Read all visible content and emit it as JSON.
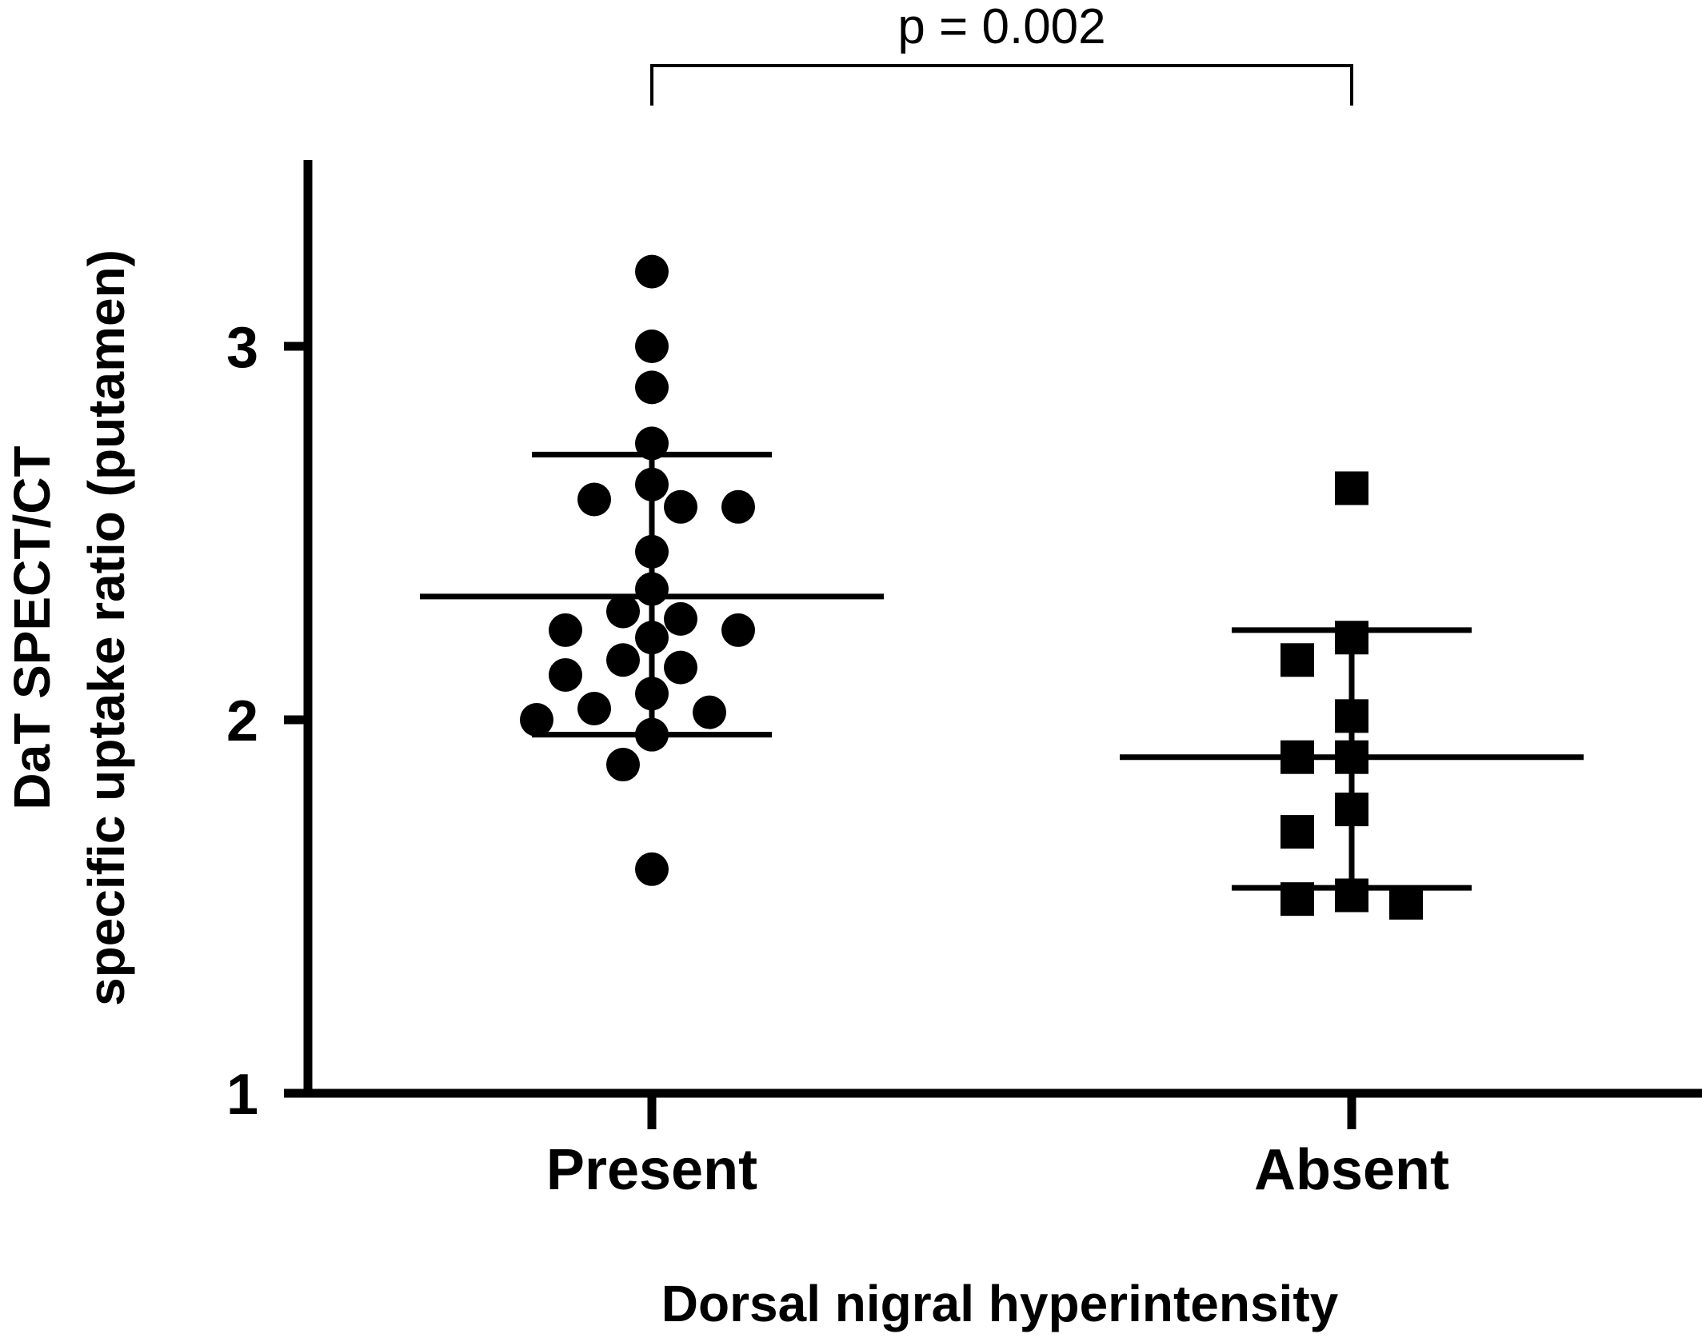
{
  "chart_data": {
    "type": "scatter",
    "title": "",
    "xlabel": "Dorsal nigral hyperintensity",
    "ylabel_lines": [
      "DaT SPECT/CT",
      "specific uptake ratio (putamen)"
    ],
    "categories": [
      "Present",
      "Absent"
    ],
    "ylim": [
      1,
      3.5
    ],
    "yticks": [
      1,
      2,
      3
    ],
    "ytick_labels": [
      "1",
      "2",
      "3"
    ],
    "grid": false,
    "series": [
      {
        "category": "Present",
        "marker": "circle",
        "values": [
          3.2,
          3.0,
          2.89,
          2.74,
          2.63,
          2.59,
          2.57,
          2.57,
          2.45,
          2.35,
          2.29,
          2.27,
          2.24,
          2.24,
          2.22,
          2.16,
          2.14,
          2.12,
          2.07,
          2.03,
          2.02,
          2.0,
          1.96,
          1.88,
          1.6
        ],
        "mean": 2.33,
        "sd_upper": 2.71,
        "sd_lower": 1.96
      },
      {
        "category": "Absent",
        "marker": "square",
        "values": [
          2.62,
          2.22,
          2.16,
          2.01,
          1.9,
          1.9,
          1.76,
          1.7,
          1.53,
          1.52,
          1.51
        ],
        "mean": 1.9,
        "sd_upper": 2.24,
        "sd_lower": 1.55
      }
    ],
    "annotation": {
      "text": "p = 0.002",
      "between": [
        "Present",
        "Absent"
      ]
    },
    "colors": {
      "ink": "#000000",
      "background": "#ffffff"
    }
  }
}
